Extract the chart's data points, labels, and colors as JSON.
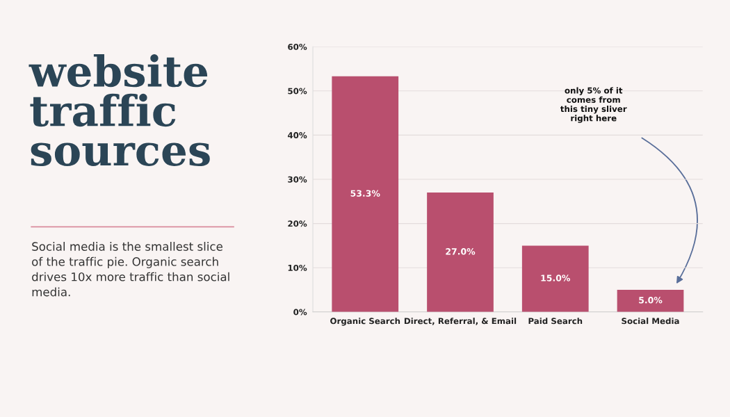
{
  "chart_data": {
    "type": "bar",
    "title": "website traffic sources",
    "subtitle": "Social media is the smallest slice\nof the traffic pie. Organic search\ndrives 10x more traffic than social\nmedia.",
    "categories": [
      "Organic Search",
      "Direct, Referral, & Email",
      "Paid Search",
      "Social Media"
    ],
    "values": [
      53.3,
      27.0,
      15.0,
      5.0
    ],
    "value_labels": [
      "53.3%",
      "27.0%",
      "15.0%",
      "5.0%"
    ],
    "color": "#b94f6e",
    "ylim": [
      0,
      60
    ],
    "yticks": [
      {
        "value": 0,
        "label": "0%"
      },
      {
        "value": 10,
        "label": "10%"
      },
      {
        "value": 20,
        "label": "20%"
      },
      {
        "value": 30,
        "label": "30%"
      },
      {
        "value": 40,
        "label": "40%"
      },
      {
        "value": 50,
        "label": "50%"
      },
      {
        "value": 60,
        "label": "60%"
      }
    ],
    "grid": "y",
    "annotations": [
      "only 5% of it\ncomes from\nthis tiny sliver\nright here"
    ]
  }
}
